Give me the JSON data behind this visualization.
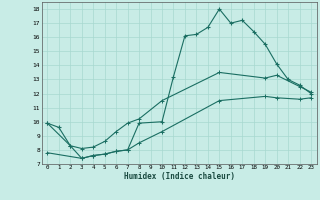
{
  "xlabel": "Humidex (Indice chaleur)",
  "xlim": [
    -0.5,
    23.5
  ],
  "ylim": [
    7,
    18.5
  ],
  "yticks": [
    7,
    8,
    9,
    10,
    11,
    12,
    13,
    14,
    15,
    16,
    17,
    18
  ],
  "xticks": [
    0,
    1,
    2,
    3,
    4,
    5,
    6,
    7,
    8,
    9,
    10,
    11,
    12,
    13,
    14,
    15,
    16,
    17,
    18,
    19,
    20,
    21,
    22,
    23
  ],
  "xtick_labels": [
    "0",
    "1",
    "2",
    "3",
    "4",
    "5",
    "6",
    "7",
    "8",
    "9",
    "10",
    "11",
    "12",
    "13",
    "14",
    "15",
    "16",
    "17",
    "18",
    "19",
    "20",
    "21",
    "22",
    "23"
  ],
  "bg_color": "#c8ece6",
  "grid_color": "#a8d8d0",
  "line_color": "#1a6e62",
  "line1_x": [
    0,
    1,
    2,
    3,
    4,
    5,
    6,
    7,
    8,
    10,
    11,
    12,
    13,
    14,
    15,
    16,
    17,
    18,
    19,
    20,
    21,
    22,
    23
  ],
  "line1_y": [
    9.9,
    9.6,
    8.3,
    7.4,
    7.6,
    7.7,
    7.9,
    8.0,
    9.9,
    10.0,
    13.2,
    16.1,
    16.2,
    16.7,
    18.0,
    17.0,
    17.2,
    16.4,
    15.5,
    14.1,
    13.0,
    12.6,
    12.0
  ],
  "line2_x": [
    0,
    2,
    3,
    4,
    5,
    6,
    7,
    8,
    10,
    15,
    19,
    20,
    22,
    23
  ],
  "line2_y": [
    9.9,
    8.3,
    8.1,
    8.2,
    8.6,
    9.3,
    9.9,
    10.2,
    11.5,
    13.5,
    13.1,
    13.3,
    12.5,
    12.1
  ],
  "line3_x": [
    0,
    3,
    4,
    5,
    6,
    7,
    8,
    10,
    15,
    19,
    20,
    22,
    23
  ],
  "line3_y": [
    7.8,
    7.4,
    7.6,
    7.7,
    7.9,
    8.0,
    8.5,
    9.3,
    11.5,
    11.8,
    11.7,
    11.6,
    11.7
  ]
}
